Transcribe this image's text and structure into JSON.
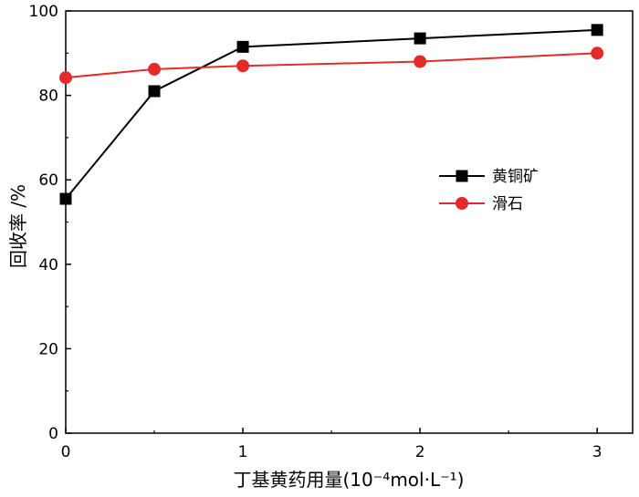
{
  "chart_data": {
    "type": "line",
    "xlabel": "丁基黄药用量(10⁻⁴mol·L⁻¹)",
    "ylabel": "回收率 /%",
    "xlim": [
      0,
      3.2
    ],
    "ylim": [
      0,
      100
    ],
    "x_ticks": [
      0,
      1,
      2,
      3
    ],
    "y_ticks": [
      0,
      20,
      40,
      60,
      80,
      100
    ],
    "grid": false,
    "legend_position": "right-middle",
    "series": [
      {
        "name": "黄铜矿",
        "color": "#000000",
        "marker": "square",
        "x": [
          0,
          0.5,
          1,
          2,
          3
        ],
        "y": [
          55.5,
          81,
          91.5,
          93.5,
          95.5
        ]
      },
      {
        "name": "滑石",
        "color": "#e32b2b",
        "marker": "circle",
        "x": [
          0,
          0.5,
          1,
          2,
          3
        ],
        "y": [
          84.2,
          86.2,
          87,
          88,
          90
        ]
      }
    ]
  }
}
